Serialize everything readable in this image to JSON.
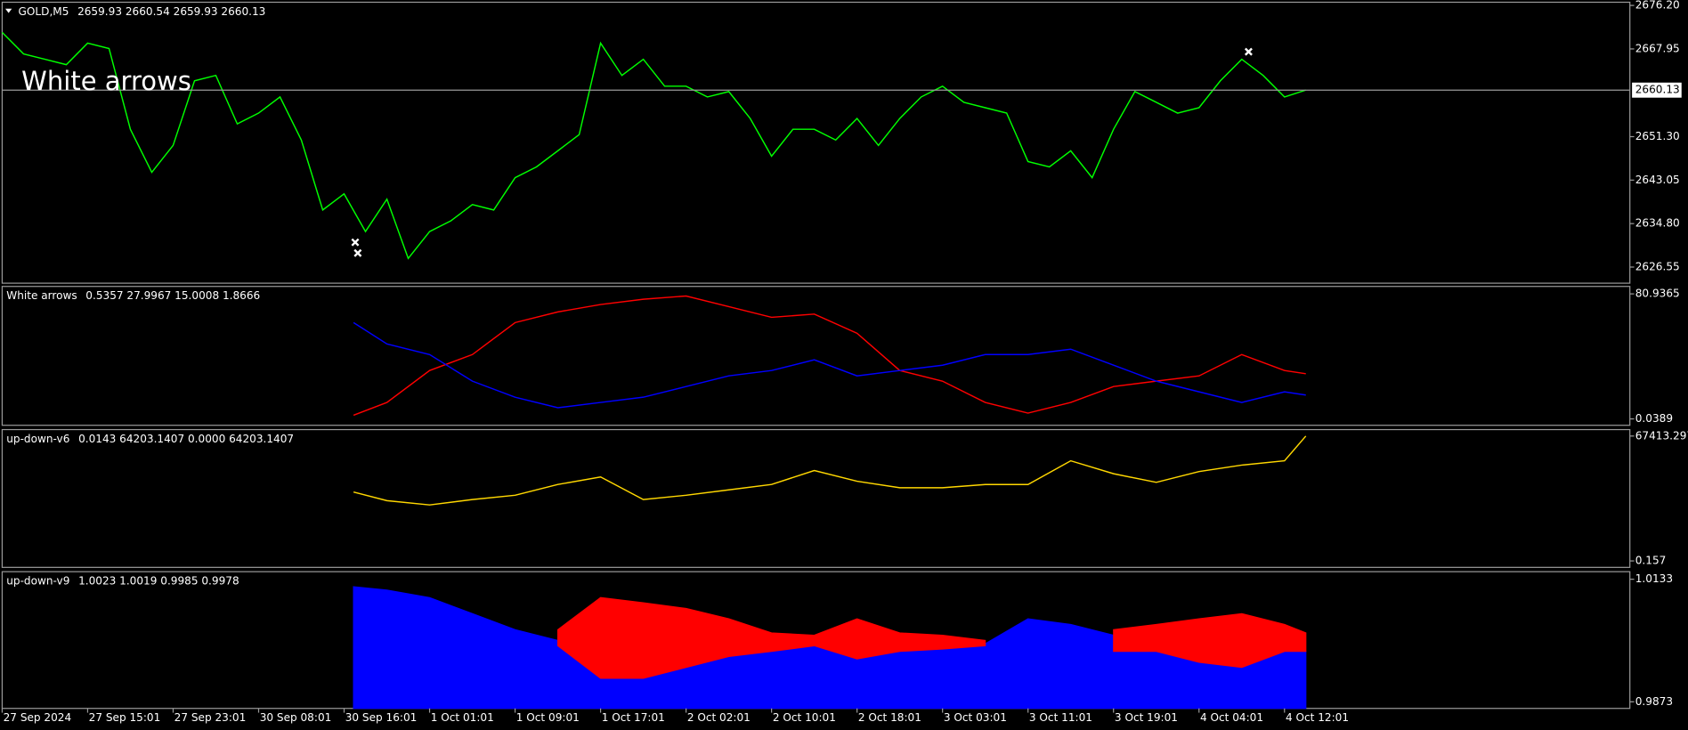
{
  "chart_data": [
    {
      "type": "line",
      "title": "GOLD,M5",
      "subtitle": "2659.93 2660.54 2659.93 2660.13",
      "annotation": "White arrows",
      "xlim": [
        0,
        19.04
      ],
      "x": [
        0,
        0.25,
        0.5,
        0.75,
        1,
        1.25,
        1.5,
        1.75,
        2,
        2.25,
        2.5,
        2.75,
        3,
        3.25,
        3.5,
        3.75,
        4,
        4.25,
        4.5,
        4.75,
        5,
        5.25,
        5.5,
        5.75,
        6,
        6.25,
        6.5,
        6.75,
        7,
        7.25,
        7.5,
        7.75,
        8,
        8.25,
        8.5,
        8.75,
        9,
        9.25,
        9.5,
        9.75,
        10,
        10.25,
        10.5,
        10.75,
        11,
        11.25,
        11.5,
        11.75,
        12,
        12.25,
        12.5,
        12.75,
        13,
        13.25,
        13.5,
        13.75,
        14,
        14.25,
        14.5,
        14.75,
        15,
        15.25
      ],
      "series": [
        {
          "color": "#00ff00",
          "values": [
            2671.09,
            2667.01,
            2665.98,
            2664.96,
            2669.05,
            2668.03,
            2652.7,
            2644.53,
            2649.64,
            2661.9,
            2662.92,
            2653.72,
            2655.77,
            2658.83,
            2650.66,
            2637.38,
            2640.44,
            2633.29,
            2639.42,
            2628.18,
            2633.29,
            2635.33,
            2638.4,
            2637.38,
            2643.51,
            2645.55,
            2648.62,
            2651.68,
            2669.05,
            2662.92,
            2665.98,
            2660.88,
            2660.88,
            2658.83,
            2659.85,
            2654.75,
            2647.59,
            2652.7,
            2652.7,
            2650.66,
            2654.75,
            2649.64,
            2654.75,
            2658.83,
            2660.88,
            2657.81,
            2656.79,
            2655.77,
            2646.57,
            2645.55,
            2648.62,
            2643.51,
            2652.7,
            2659.85,
            2657.81,
            2655.77,
            2656.79,
            2661.9,
            2665.98,
            2662.92,
            2658.83,
            2660.13
          ]
        }
      ],
      "arrows": {
        "color": "#ffffff",
        "x": [
          4.13,
          4.16,
          14.58
        ],
        "values": [
          2631.25,
          2629.21,
          2667.41
        ]
      },
      "price_line": 2660.13,
      "ylim": [
        2623.49,
        2676.81
      ],
      "yticks": [
        {
          "value": 2676.2,
          "label": "2676.20"
        },
        2667.95,
        {
          "value": 2651.3,
          "label": "2651.30"
        },
        2643.05,
        {
          "value": 2634.8,
          "label": "2634.80"
        },
        2626.55
      ]
    },
    {
      "type": "line",
      "title": "White arrows",
      "subtitle": "0.5357 27.9967 15.0008 1.8666",
      "xlim": [
        0,
        19.04
      ],
      "x": [
        4.11,
        4.5,
        5,
        5.5,
        6,
        6.5,
        7,
        7.5,
        8,
        8.5,
        9,
        9.5,
        10,
        10.5,
        11,
        11.5,
        12,
        12.5,
        13,
        13.5,
        14,
        14.5,
        15,
        15.25
      ],
      "series": [
        {
          "color": "#ff0000",
          "values": [
            2.41,
            10.68,
            31.35,
            41.68,
            62.34,
            69.23,
            74.05,
            77.49,
            79.56,
            72.67,
            65.78,
            67.85,
            55.45,
            31.35,
            24.46,
            10.68,
            3.79,
            10.68,
            21.01,
            24.46,
            27.9,
            41.68,
            31.35,
            29.28
          ]
        },
        {
          "color": "#0000ff",
          "values": [
            62.34,
            48.56,
            41.68,
            24.46,
            14.12,
            7.24,
            10.68,
            14.12,
            21.01,
            27.9,
            31.35,
            38.23,
            27.9,
            31.35,
            34.79,
            41.68,
            41.68,
            45.12,
            34.79,
            24.46,
            17.57,
            10.68,
            17.57,
            15.5
          ]
        }
      ],
      "ylim": [
        -4.09,
        85.76
      ],
      "yticks": [
        80.9365,
        0.0389
      ]
    },
    {
      "type": "line",
      "title": "up-down-v6",
      "subtitle": "0.0143 64203.1407 0.0000 64203.1407",
      "xlim": [
        0,
        19.04
      ],
      "x": [
        4.11,
        4.5,
        5,
        5.5,
        6,
        6.5,
        7,
        7.5,
        8,
        8.5,
        9,
        9.5,
        10,
        10.5,
        11,
        11.5,
        12,
        12.5,
        13,
        13.5,
        14,
        14.5,
        15,
        15.25
      ],
      "series": [
        {
          "color": "#ffd700",
          "values": [
            37193.5,
            32544.3,
            30219.7,
            33125.4,
            35450.0,
            41261.5,
            45329.6,
            33125.4,
            35450.0,
            38355.8,
            41261.5,
            48816.5,
            43005.0,
            39518.1,
            39518.1,
            41261.5,
            41261.5,
            54046.8,
            47073.0,
            42423.8,
            48235.3,
            51722.2,
            54046.8,
            67413.3
          ]
        }
      ],
      "ylim": [
        -3486.7,
        70900.2
      ],
      "yticks": [
        67413.297,
        0.157
      ]
    },
    {
      "type": "area",
      "title": "up-down-v9",
      "subtitle": "1.0023 1.0019 0.9985 0.9978",
      "xlim": [
        0,
        19.04
      ],
      "x": [
        4.11,
        4.5,
        5,
        5.5,
        6,
        6.5,
        7,
        7.5,
        8,
        8.5,
        9,
        9.5,
        10,
        10.5,
        11,
        11.5,
        12,
        12.5,
        13,
        13.5,
        14,
        14.5,
        15,
        15.25
      ],
      "series": [
        {
          "color": "#0000ff",
          "values": [
            1.0117,
            1.011,
            1.0094,
            1.006,
            1.0026,
            1.0003,
            0.9992,
            0.998,
            0.998,
            0.998,
            0.9996,
            0.9996,
            0.9992,
            0.9992,
            0.9996,
            0.9996,
            1.0049,
            1.0037,
            1.0014,
            1.0003,
            1.0003,
            0.9996,
            0.9992,
            0.998
          ]
        },
        {
          "color": "#ff0000",
          "values": [
            null,
            null,
            null,
            null,
            null,
            1.0026,
            1.0094,
            1.0083,
            1.0071,
            1.0049,
            1.0019,
            1.0014,
            1.0049,
            1.0019,
            1.0014,
            1.0003,
            null,
            null,
            1.0026,
            1.0037,
            1.0049,
            1.006,
            1.0037,
            1.0019
          ],
          "lower": [
            null,
            null,
            null,
            null,
            null,
            0.9992,
            0.9923,
            0.9923,
            0.9946,
            0.9969,
            0.998,
            0.9992,
            0.9964,
            0.998,
            0.9985,
            0.9992,
            null,
            null,
            0.998,
            0.998,
            0.9957,
            0.9946,
            0.998,
            0.998
          ]
        }
      ],
      "ylim": [
        0.9859,
        1.0149
      ],
      "yticks": [
        1.0133,
        0.9873
      ],
      "xticks": [
        {
          "value": 0,
          "label": "27 Sep 2024"
        },
        {
          "value": 1,
          "label": "27 Sep 15:01"
        },
        {
          "value": 2,
          "label": "27 Sep 23:01"
        },
        {
          "value": 3,
          "label": "30 Sep 08:01"
        },
        {
          "value": 4,
          "label": "30 Sep 16:01"
        },
        {
          "value": 5,
          "label": "1 Oct 01:01"
        },
        {
          "value": 6,
          "label": "1 Oct 09:01"
        },
        {
          "value": 7,
          "label": "1 Oct 17:01"
        },
        {
          "value": 8,
          "label": "2 Oct 02:01"
        },
        {
          "value": 9,
          "label": "2 Oct 10:01"
        },
        {
          "value": 10,
          "label": "2 Oct 18:01"
        },
        {
          "value": 11,
          "label": "3 Oct 03:01"
        },
        {
          "value": 12,
          "label": "3 Oct 11:01"
        },
        {
          "value": 13,
          "label": "3 Oct 19:01"
        },
        {
          "value": 14,
          "label": "4 Oct 04:01"
        },
        {
          "value": 15,
          "label": "4 Oct 12:01"
        }
      ]
    }
  ]
}
